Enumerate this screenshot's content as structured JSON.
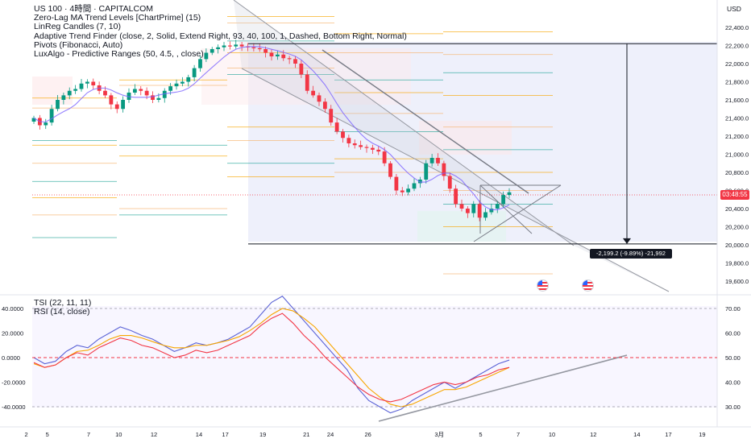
{
  "symbol_title": "US 100 · 4時間 · CAPITALCOM",
  "indicators": [
    "Zero-Lag MA Trend Levels [ChartPrime] (15)",
    "LinReg Candles (7, 10)",
    "Adaptive Trend Finder (close, 2, Solid, Extend Right, 93, 40, 100, 1, Dashed, Bottom Right, Normal)",
    "Pivots (Fibonacci, Auto)",
    "LuxAlgo - Predictive Ranges (50, 4.5, , close)"
  ],
  "oscillators": [
    "TSI (22, 11, 11)",
    "RSI (14, close)"
  ],
  "currency": "USD",
  "current_price_badge": "03:48:55",
  "measure_label": "-2,199.2 (-9.89%) -21,992",
  "colors": {
    "up": "#089981",
    "down": "#f23645",
    "accent": "#2962ff",
    "pivot_orange": "#f7a600",
    "tsi_blue": "#5b63d6",
    "rsi_red": "#f23645"
  },
  "chart_data": [
    {
      "type": "candlestick",
      "ylim": [
        19500,
        22700
      ],
      "price_axis_ticks": [
        "22,400.0",
        "22,200.0",
        "22,000.0",
        "21,800.0",
        "21,600.0",
        "21,400.0",
        "21,200.0",
        "21,000.0",
        "20,800.0",
        "20,600.0",
        "20,400.0",
        "20,200.0",
        "20,000.0",
        "19,800.0",
        "19,600.0"
      ],
      "price_axis_values": [
        22400,
        22200,
        22000,
        21800,
        21600,
        21400,
        21200,
        21000,
        20800,
        20600,
        20400,
        20200,
        20000,
        19800,
        19600
      ],
      "close_path": [
        21400,
        21320,
        21350,
        21500,
        21600,
        21650,
        21700,
        21720,
        21780,
        21800,
        21760,
        21700,
        21650,
        21550,
        21500,
        21600,
        21680,
        21720,
        21700,
        21650,
        21600,
        21620,
        21700,
        21750,
        21780,
        21800,
        21850,
        21950,
        22050,
        22120,
        22160,
        22180,
        22200,
        22190,
        22210,
        22190,
        22180,
        22170,
        22160,
        22120,
        22080,
        22100,
        22060,
        22050,
        22000,
        21880,
        21700,
        21650,
        21580,
        21500,
        21350,
        21250,
        21180,
        21120,
        21100,
        21080,
        21070,
        21050,
        21030,
        20900,
        20750,
        20600,
        20580,
        20620,
        20680,
        20720,
        20900,
        20960,
        20900,
        20760,
        20620,
        20450,
        20400,
        20350,
        20450,
        20300,
        20360,
        20400,
        20450,
        20550,
        20580
      ],
      "ohlc_sample_note": "",
      "measure_top": 22220,
      "measure_bottom": 20010
    },
    {
      "type": "line",
      "left_ticks": [
        "40.0000",
        "20.0000",
        "0.0000",
        "-20.0000",
        "-40.0000"
      ],
      "left_values": [
        40,
        20,
        0,
        -20,
        -40
      ],
      "right_ticks": [
        "70.00",
        "60.00",
        "50.00",
        "40.00",
        "30.00"
      ],
      "right_values": [
        70,
        60,
        50,
        40,
        30
      ],
      "series": [
        {
          "values": [
            0,
            -5,
            -3,
            5,
            10,
            8,
            15,
            20,
            25,
            22,
            18,
            15,
            10,
            5,
            8,
            12,
            10,
            12,
            15,
            20,
            25,
            35,
            45,
            50,
            40,
            30,
            20,
            10,
            0,
            -10,
            -25,
            -35,
            -40,
            -45,
            -42,
            -35,
            -30,
            -25,
            -20,
            -25,
            -20,
            -15,
            -10,
            -5,
            -2
          ]
        },
        {
          "values": [
            -5,
            -8,
            -6,
            0,
            5,
            6,
            10,
            15,
            18,
            18,
            16,
            13,
            10,
            8,
            8,
            10,
            10,
            12,
            14,
            17,
            22,
            28,
            35,
            40,
            38,
            32,
            25,
            15,
            5,
            -5,
            -15,
            -25,
            -32,
            -38,
            -40,
            -38,
            -34,
            -30,
            -26,
            -26,
            -24,
            -20,
            -16,
            -12,
            -8
          ]
        },
        {
          "values": [
            48,
            46,
            47,
            50,
            52,
            51,
            54,
            56,
            58,
            57,
            55,
            54,
            52,
            50,
            51,
            53,
            52,
            53,
            55,
            57,
            59,
            63,
            66,
            68,
            64,
            59,
            55,
            50,
            46,
            42,
            38,
            35,
            33,
            32,
            33,
            35,
            37,
            39,
            40,
            39,
            40,
            42,
            43,
            45,
            46
          ]
        }
      ]
    }
  ],
  "time_axis_labels": [
    "2",
    "5",
    "7",
    "10",
    "12",
    "14",
    "17",
    "19",
    "21",
    "24",
    "26",
    "3月",
    "5",
    "7",
    "10",
    "12",
    "14",
    "17",
    "19"
  ],
  "time_axis_x_frac": [
    0.035,
    0.063,
    0.118,
    0.158,
    0.205,
    0.265,
    0.3,
    0.35,
    0.408,
    0.44,
    0.49,
    0.585,
    0.64,
    0.69,
    0.735,
    0.79,
    0.848,
    0.89,
    0.935
  ]
}
